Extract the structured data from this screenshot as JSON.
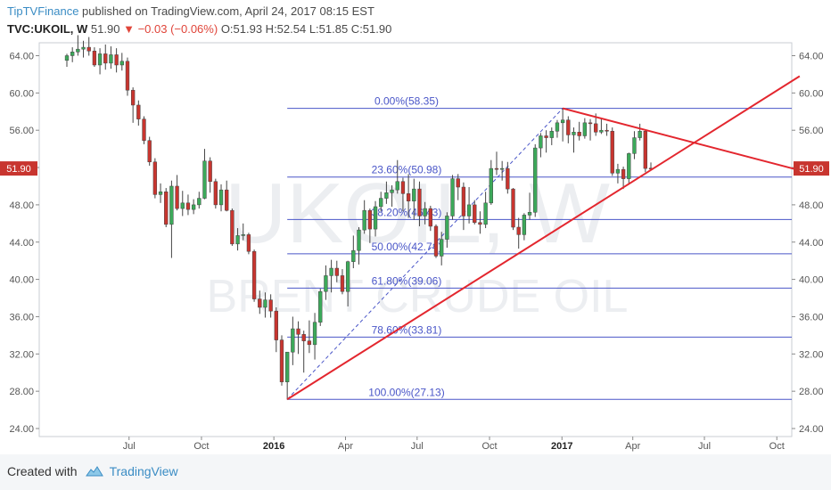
{
  "header": {
    "publisher": "TipTVFinance",
    "published_text": " published on TradingView.com, April 24, 2017 08:15 EST",
    "symbol": "TVC:UKOIL, W",
    "price": "51.90",
    "change_arrow": "▼",
    "change": "−0.03 (−0.06%)",
    "ohlc": "O:51.93 H:52.54 L:51.85 C:51.90"
  },
  "watermark": {
    "line1": "UKOIL, W",
    "line2": "BRENT CRUDE OIL"
  },
  "footer": {
    "created_with": "Created with",
    "brand": "TradingView"
  },
  "colors": {
    "up": "#3ca95a",
    "down": "#c8352f",
    "fib": "#4a56c8",
    "trend": "#e3262e",
    "accent": "#3a8cc4"
  },
  "chart_data": {
    "type": "candlestick",
    "timeframe": "W",
    "ylim": [
      22,
      66
    ],
    "y_ticks": [
      "64.00",
      "60.00",
      "56.00",
      "52.00",
      "48.00",
      "44.00",
      "40.00",
      "36.00",
      "32.00",
      "28.00",
      "24.00"
    ],
    "x_ticks": [
      "Jul",
      "Oct",
      "2016",
      "Apr",
      "Jul",
      "Oct",
      "2017",
      "Apr",
      "Jul",
      "Oct"
    ],
    "last_price_label": "51.90",
    "fib_levels": [
      {
        "label": "0.00%(58.35)",
        "value": 58.35
      },
      {
        "label": "23.60%(50.98)",
        "value": 50.98
      },
      {
        "label": "38.20%(46.43)",
        "value": 46.43
      },
      {
        "label": "50.00%(42.74)",
        "value": 42.74
      },
      {
        "label": "61.80%(39.06)",
        "value": 39.06
      },
      {
        "label": "78.60%(33.81)",
        "value": 33.81
      },
      {
        "label": "100.00%(27.13)",
        "value": 27.13
      }
    ],
    "fib_swing": {
      "from": {
        "x": "2016-01-18",
        "y": 27.13
      },
      "to": {
        "x": "2017-01-02",
        "y": 58.35
      }
    },
    "trendlines": [
      {
        "from": {
          "x": "2016-01-18",
          "y": 27.13
        },
        "to": {
          "x": "2017-10-30",
          "y": 61.8
        }
      },
      {
        "from": {
          "x": "2017-01-02",
          "y": 58.35
        },
        "to": {
          "x": "2017-10-30",
          "y": 51.7
        }
      }
    ],
    "candles": [
      [
        "2015-04-13",
        63.5,
        64.2,
        62.8,
        64.0
      ],
      [
        "2015-04-20",
        64.0,
        64.9,
        63.3,
        64.4
      ],
      [
        "2015-04-27",
        64.4,
        66.2,
        64.0,
        64.7
      ],
      [
        "2015-05-04",
        64.7,
        65.6,
        63.8,
        64.9
      ],
      [
        "2015-05-11",
        64.9,
        66.0,
        64.0,
        64.5
      ],
      [
        "2015-05-18",
        64.5,
        64.9,
        62.8,
        63.0
      ],
      [
        "2015-05-25",
        63.0,
        64.8,
        62.0,
        64.2
      ],
      [
        "2015-06-01",
        64.2,
        65.2,
        62.5,
        63.2
      ],
      [
        "2015-06-08",
        63.2,
        65.0,
        62.6,
        64.1
      ],
      [
        "2015-06-15",
        64.1,
        64.8,
        62.2,
        63.0
      ],
      [
        "2015-06-22",
        63.0,
        64.3,
        62.4,
        63.4
      ],
      [
        "2015-06-29",
        63.4,
        63.8,
        59.7,
        60.3
      ],
      [
        "2015-07-06",
        60.3,
        60.6,
        56.8,
        58.7
      ],
      [
        "2015-07-13",
        58.7,
        59.2,
        56.5,
        57.2
      ],
      [
        "2015-07-20",
        57.2,
        57.5,
        54.5,
        54.9
      ],
      [
        "2015-07-27",
        54.9,
        55.3,
        52.2,
        52.6
      ],
      [
        "2015-08-03",
        52.6,
        53.0,
        48.7,
        49.1
      ],
      [
        "2015-08-10",
        49.1,
        50.3,
        48.2,
        49.4
      ],
      [
        "2015-08-17",
        49.4,
        49.8,
        45.6,
        45.9
      ],
      [
        "2015-08-24",
        45.9,
        50.6,
        42.3,
        50.0
      ],
      [
        "2015-08-31",
        50.0,
        51.2,
        47.4,
        47.6
      ],
      [
        "2015-09-07",
        47.6,
        49.5,
        46.8,
        48.2
      ],
      [
        "2015-09-14",
        48.2,
        49.1,
        46.9,
        47.5
      ],
      [
        "2015-09-21",
        47.5,
        48.6,
        47.0,
        48.0
      ],
      [
        "2015-09-28",
        48.0,
        49.4,
        47.6,
        48.7
      ],
      [
        "2015-10-05",
        48.7,
        54.0,
        48.6,
        52.7
      ],
      [
        "2015-10-12",
        52.7,
        53.1,
        49.3,
        50.5
      ],
      [
        "2015-10-19",
        50.5,
        50.8,
        47.6,
        48.0
      ],
      [
        "2015-10-26",
        48.0,
        50.2,
        47.3,
        49.6
      ],
      [
        "2015-11-02",
        49.6,
        50.6,
        47.3,
        47.4
      ],
      [
        "2015-11-09",
        47.4,
        47.6,
        43.6,
        43.8
      ],
      [
        "2015-11-16",
        43.8,
        45.5,
        43.1,
        44.7
      ],
      [
        "2015-11-23",
        44.7,
        46.0,
        44.2,
        44.8
      ],
      [
        "2015-11-30",
        44.8,
        45.0,
        42.7,
        43.0
      ],
      [
        "2015-12-07",
        43.0,
        43.2,
        37.6,
        37.9
      ],
      [
        "2015-12-14",
        37.9,
        38.8,
        36.3,
        37.0
      ],
      [
        "2015-12-21",
        37.0,
        38.6,
        35.9,
        37.8
      ],
      [
        "2015-12-28",
        37.8,
        38.4,
        35.9,
        36.6
      ],
      [
        "2016-01-04",
        36.6,
        37.0,
        32.2,
        33.5
      ],
      [
        "2016-01-11",
        33.5,
        34.0,
        28.6,
        29.0
      ],
      [
        "2016-01-18",
        29.0,
        32.2,
        27.1,
        32.2
      ],
      [
        "2016-01-25",
        32.2,
        36.0,
        30.8,
        34.7
      ],
      [
        "2016-02-01",
        34.7,
        35.5,
        32.0,
        34.1
      ],
      [
        "2016-02-08",
        34.1,
        34.5,
        30.0,
        33.4
      ],
      [
        "2016-02-15",
        33.4,
        35.6,
        32.1,
        33.0
      ],
      [
        "2016-02-22",
        33.0,
        36.4,
        31.4,
        35.4
      ],
      [
        "2016-02-29",
        35.4,
        39.0,
        35.0,
        38.7
      ],
      [
        "2016-03-07",
        38.7,
        41.5,
        37.8,
        40.4
      ],
      [
        "2016-03-14",
        40.4,
        42.1,
        38.6,
        41.2
      ],
      [
        "2016-03-21",
        41.2,
        42.0,
        39.7,
        40.4
      ],
      [
        "2016-03-28",
        40.4,
        41.1,
        38.4,
        38.7
      ],
      [
        "2016-04-04",
        38.7,
        42.0,
        37.1,
        41.9
      ],
      [
        "2016-04-11",
        41.9,
        44.7,
        41.2,
        43.1
      ],
      [
        "2016-04-18",
        43.1,
        45.6,
        41.6,
        45.3
      ],
      [
        "2016-04-25",
        45.3,
        48.5,
        44.9,
        47.4
      ],
      [
        "2016-05-02",
        47.4,
        47.6,
        43.9,
        45.4
      ],
      [
        "2016-05-09",
        45.4,
        48.4,
        44.6,
        47.8
      ],
      [
        "2016-05-16",
        47.8,
        49.4,
        47.3,
        48.7
      ],
      [
        "2016-05-23",
        48.7,
        50.5,
        48.1,
        49.3
      ],
      [
        "2016-05-30",
        49.3,
        50.1,
        47.8,
        49.6
      ],
      [
        "2016-06-06",
        49.6,
        52.8,
        49.2,
        50.5
      ],
      [
        "2016-06-13",
        50.5,
        50.9,
        47.3,
        49.2
      ],
      [
        "2016-06-20",
        49.2,
        51.3,
        46.6,
        48.4
      ],
      [
        "2016-06-27",
        48.4,
        50.8,
        46.4,
        49.7
      ],
      [
        "2016-07-04",
        49.7,
        50.5,
        45.7,
        46.8
      ],
      [
        "2016-07-11",
        46.8,
        48.3,
        45.9,
        47.6
      ],
      [
        "2016-07-18",
        47.6,
        47.9,
        45.2,
        45.7
      ],
      [
        "2016-07-25",
        45.7,
        45.9,
        42.3,
        42.5
      ],
      [
        "2016-08-01",
        42.5,
        45.1,
        41.5,
        44.3
      ],
      [
        "2016-08-08",
        44.3,
        47.2,
        43.4,
        46.8
      ],
      [
        "2016-08-15",
        46.8,
        51.2,
        46.4,
        50.8
      ],
      [
        "2016-08-22",
        50.8,
        51.3,
        48.5,
        49.9
      ],
      [
        "2016-08-29",
        49.9,
        50.4,
        45.3,
        46.8
      ],
      [
        "2016-09-05",
        46.8,
        49.9,
        46.0,
        48.0
      ],
      [
        "2016-09-12",
        48.0,
        48.5,
        45.9,
        46.1
      ],
      [
        "2016-09-19",
        46.1,
        47.3,
        44.9,
        45.9
      ],
      [
        "2016-09-26",
        45.9,
        49.4,
        45.5,
        48.2
      ],
      [
        "2016-10-03",
        48.2,
        52.8,
        48.0,
        51.9
      ],
      [
        "2016-10-10",
        51.9,
        53.7,
        51.2,
        51.8
      ],
      [
        "2016-10-17",
        51.8,
        52.7,
        50.6,
        51.9
      ],
      [
        "2016-10-24",
        51.9,
        52.6,
        49.2,
        49.7
      ],
      [
        "2016-10-31",
        49.7,
        49.8,
        45.3,
        45.6
      ],
      [
        "2016-11-07",
        45.6,
        46.6,
        43.3,
        44.8
      ],
      [
        "2016-11-14",
        44.8,
        47.1,
        44.2,
        46.9
      ],
      [
        "2016-11-21",
        46.9,
        49.3,
        46.4,
        47.2
      ],
      [
        "2016-11-28",
        47.2,
        54.5,
        46.7,
        54.1
      ],
      [
        "2016-12-05",
        54.1,
        55.7,
        53.1,
        55.4
      ],
      [
        "2016-12-12",
        55.4,
        56.0,
        53.6,
        55.2
      ],
      [
        "2016-12-19",
        55.2,
        56.3,
        54.4,
        55.9
      ],
      [
        "2016-12-26",
        55.9,
        57.1,
        55.2,
        56.8
      ],
      [
        "2017-01-02",
        56.8,
        58.4,
        54.8,
        57.1
      ],
      [
        "2017-01-09",
        57.1,
        57.5,
        54.6,
        55.5
      ],
      [
        "2017-01-16",
        55.5,
        56.3,
        53.6,
        55.8
      ],
      [
        "2017-01-23",
        55.8,
        56.9,
        54.9,
        55.4
      ],
      [
        "2017-01-30",
        55.4,
        57.3,
        55.1,
        56.8
      ],
      [
        "2017-02-06",
        56.8,
        57.2,
        54.9,
        56.7
      ],
      [
        "2017-02-13",
        56.7,
        57.8,
        55.4,
        55.8
      ],
      [
        "2017-02-20",
        55.8,
        57.2,
        55.6,
        56.0
      ],
      [
        "2017-02-27",
        56.0,
        56.7,
        55.4,
        55.9
      ],
      [
        "2017-03-06",
        55.9,
        56.3,
        51.1,
        51.4
      ],
      [
        "2017-03-13",
        51.4,
        52.4,
        50.3,
        51.8
      ],
      [
        "2017-03-20",
        51.8,
        52.1,
        49.7,
        50.8
      ],
      [
        "2017-03-27",
        50.8,
        53.6,
        50.3,
        53.5
      ],
      [
        "2017-04-03",
        53.5,
        55.9,
        52.9,
        55.2
      ],
      [
        "2017-04-10",
        55.2,
        56.7,
        54.9,
        55.9
      ],
      [
        "2017-04-17",
        55.9,
        56.1,
        51.5,
        51.9
      ],
      [
        "2017-04-24",
        51.93,
        52.54,
        51.85,
        51.9
      ]
    ]
  }
}
